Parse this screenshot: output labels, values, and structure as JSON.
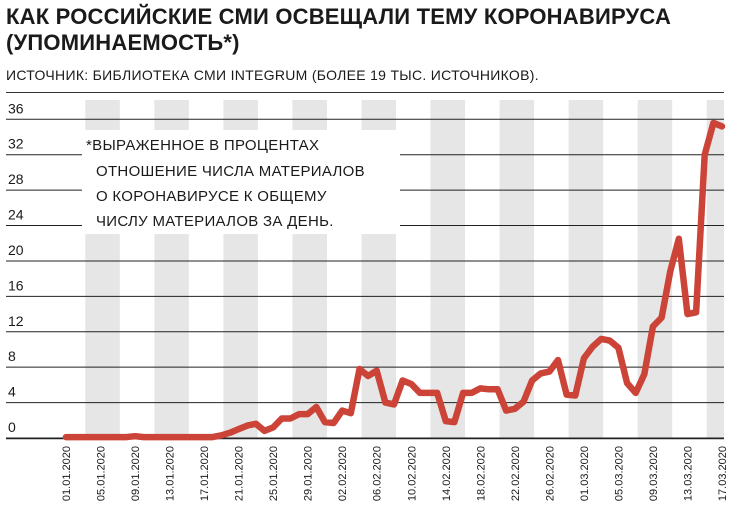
{
  "header": {
    "title_line1": "КАК РОССИЙСКИЕ СМИ ОСВЕЩАЛИ ТЕМУ КОРОНАВИРУСА",
    "title_line2": "(УПОМИНАЕМОСТЬ*)",
    "source": "ИСТОЧНИК: БИБЛИОТЕКА СМИ INTEGRUM (БОЛЕЕ 19 ТЫС. ИСТОЧНИКОВ)."
  },
  "note": {
    "lines": [
      "*ВЫРАЖЕННОЕ В ПРОЦЕНТАХ",
      "ОТНОШЕНИЕ ЧИСЛА МАТЕРИАЛОВ",
      "О КОРОНАВИРУСЕ К ОБЩЕМУ",
      "ЧИСЛУ МАТЕРИАЛОВ ЗА ДЕНЬ."
    ]
  },
  "colors": {
    "line": "#cc4438",
    "band": "#e6e6e6",
    "grid": "#222222"
  },
  "chart_data": {
    "type": "line",
    "title": "КАК РОССИЙСКИЕ СМИ ОСВЕЩАЛИ ТЕМУ КОРОНАВИРУСА (УПОМИНАЕМОСТЬ*)",
    "xlabel": "",
    "ylabel": "",
    "ylim": [
      0,
      36
    ],
    "yticks": [
      0,
      4,
      8,
      12,
      16,
      20,
      24,
      28,
      32,
      36
    ],
    "xtick_labels": [
      "01.01.2020",
      "05.01.2020",
      "09.01.2020",
      "13.01.2020",
      "17.01.2020",
      "21.01.2020",
      "25.01.2020",
      "29.01.2020",
      "02.02.2020",
      "06.02.2020",
      "10.02.2020",
      "14.02.2020",
      "18.02.2020",
      "22.02.2020",
      "26.02.2020",
      "01.03.2020",
      "05.03.2020",
      "09.03.2020",
      "13.03.2020",
      "17.03.2020"
    ],
    "grid": true,
    "series": [
      {
        "values": [
          [
            0,
            0.1
          ],
          [
            1,
            0.1
          ],
          [
            2,
            0.1
          ],
          [
            3,
            0.1
          ],
          [
            4,
            0.1
          ],
          [
            5,
            0.1
          ],
          [
            6,
            0.1
          ],
          [
            7,
            0.1
          ],
          [
            8,
            0.2
          ],
          [
            9,
            0.1
          ],
          [
            10,
            0.1
          ],
          [
            11,
            0.1
          ],
          [
            12,
            0.1
          ],
          [
            13,
            0.1
          ],
          [
            14,
            0.1
          ],
          [
            15,
            0.1
          ],
          [
            16,
            0.1
          ],
          [
            17,
            0.1
          ],
          [
            18,
            0.3
          ],
          [
            19,
            0.6
          ],
          [
            20,
            1.0
          ],
          [
            21,
            1.4
          ],
          [
            22,
            1.6
          ],
          [
            23,
            0.8
          ],
          [
            24,
            1.2
          ],
          [
            25,
            2.2
          ],
          [
            26,
            2.2
          ],
          [
            27,
            2.7
          ],
          [
            28,
            2.7
          ],
          [
            29,
            3.5
          ],
          [
            30,
            1.8
          ],
          [
            31,
            1.7
          ],
          [
            32,
            3.1
          ],
          [
            33,
            2.8
          ],
          [
            34,
            7.8
          ],
          [
            35,
            7.0
          ],
          [
            36,
            7.6
          ],
          [
            37,
            4.0
          ],
          [
            38,
            3.8
          ],
          [
            39,
            6.5
          ],
          [
            40,
            6.1
          ],
          [
            41,
            5.1
          ],
          [
            42,
            5.1
          ],
          [
            43,
            5.1
          ],
          [
            44,
            1.9
          ],
          [
            45,
            1.8
          ],
          [
            46,
            5.1
          ],
          [
            47,
            5.1
          ],
          [
            48,
            5.6
          ],
          [
            49,
            5.5
          ],
          [
            50,
            5.5
          ],
          [
            51,
            3.1
          ],
          [
            52,
            3.3
          ],
          [
            53,
            4.1
          ],
          [
            54,
            6.5
          ],
          [
            55,
            7.3
          ],
          [
            56,
            7.5
          ],
          [
            57,
            8.8
          ],
          [
            58,
            4.9
          ],
          [
            59,
            4.8
          ],
          [
            60,
            9.0
          ],
          [
            61,
            10.3
          ],
          [
            62,
            11.2
          ],
          [
            63,
            11.0
          ],
          [
            64,
            10.2
          ],
          [
            65,
            6.2
          ],
          [
            66,
            5.1
          ],
          [
            67,
            7.2
          ],
          [
            68,
            12.6
          ],
          [
            69,
            13.6
          ],
          [
            70,
            18.8
          ],
          [
            71,
            22.5
          ],
          [
            72,
            14.0
          ],
          [
            73,
            14.2
          ],
          [
            74,
            32.0
          ],
          [
            75,
            35.6
          ],
          [
            76,
            35.2
          ]
        ]
      }
    ]
  }
}
